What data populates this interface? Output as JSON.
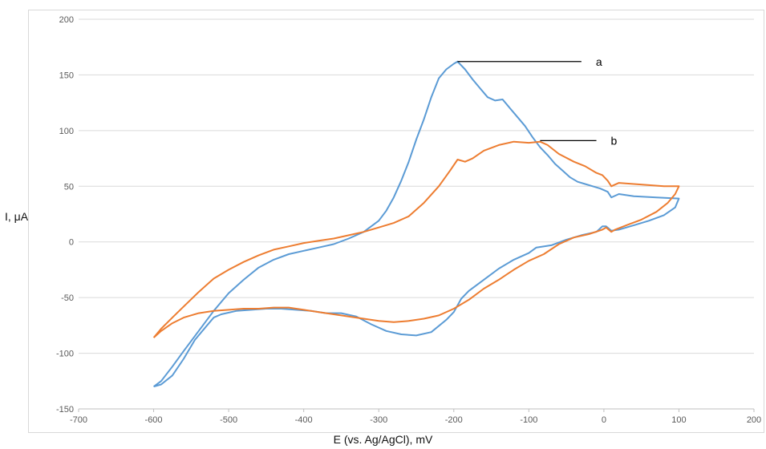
{
  "chart_data": {
    "type": "line",
    "title": "",
    "xlabel": "E (vs. Ag/AgCl), mV",
    "ylabel": "I, μA",
    "xlim": [
      -700,
      200
    ],
    "ylim": [
      -150,
      200
    ],
    "x_ticks": [
      -700,
      -600,
      -500,
      -400,
      -300,
      -200,
      -100,
      0,
      100,
      200
    ],
    "y_ticks": [
      -150,
      -100,
      -50,
      0,
      50,
      100,
      150,
      200
    ],
    "grid": "horizontal",
    "legend": "none",
    "colors": {
      "series_a": "#5b9bd5",
      "series_b": "#ed7d31",
      "gridline": "#d9d9d9",
      "annotation": "#000000"
    },
    "series": [
      {
        "color": "#5b9bd5",
        "points": [
          [
            -600,
            -130
          ],
          [
            -590,
            -125
          ],
          [
            -575,
            -112
          ],
          [
            -560,
            -98
          ],
          [
            -540,
            -80
          ],
          [
            -520,
            -62
          ],
          [
            -500,
            -46
          ],
          [
            -480,
            -34
          ],
          [
            -460,
            -23
          ],
          [
            -440,
            -16
          ],
          [
            -420,
            -11
          ],
          [
            -400,
            -8
          ],
          [
            -380,
            -5
          ],
          [
            -360,
            -2
          ],
          [
            -340,
            3
          ],
          [
            -320,
            9
          ],
          [
            -300,
            19
          ],
          [
            -290,
            28
          ],
          [
            -280,
            40
          ],
          [
            -270,
            55
          ],
          [
            -260,
            72
          ],
          [
            -250,
            92
          ],
          [
            -240,
            110
          ],
          [
            -230,
            130
          ],
          [
            -220,
            147
          ],
          [
            -210,
            155
          ],
          [
            -200,
            160
          ],
          [
            -195,
            162
          ],
          [
            -185,
            155
          ],
          [
            -175,
            146
          ],
          [
            -165,
            138
          ],
          [
            -155,
            130
          ],
          [
            -145,
            127
          ],
          [
            -135,
            128
          ],
          [
            -125,
            120
          ],
          [
            -115,
            112
          ],
          [
            -105,
            104
          ],
          [
            -95,
            94
          ],
          [
            -85,
            85
          ],
          [
            -75,
            78
          ],
          [
            -65,
            70
          ],
          [
            -55,
            64
          ],
          [
            -45,
            58
          ],
          [
            -35,
            54
          ],
          [
            -25,
            52
          ],
          [
            -15,
            50
          ],
          [
            -5,
            48
          ],
          [
            5,
            45
          ],
          [
            10,
            40
          ],
          [
            20,
            43
          ],
          [
            40,
            41
          ],
          [
            70,
            40
          ],
          [
            100,
            39
          ],
          [
            95,
            31
          ],
          [
            80,
            24
          ],
          [
            60,
            19
          ],
          [
            40,
            15
          ],
          [
            20,
            11
          ],
          [
            10,
            10
          ],
          [
            3,
            14
          ],
          [
            -2,
            14
          ],
          [
            -10,
            9
          ],
          [
            -30,
            6
          ],
          [
            -50,
            2
          ],
          [
            -70,
            -3
          ],
          [
            -90,
            -5
          ],
          [
            -100,
            -10
          ],
          [
            -120,
            -16
          ],
          [
            -140,
            -24
          ],
          [
            -160,
            -34
          ],
          [
            -180,
            -44
          ],
          [
            -190,
            -51
          ],
          [
            -200,
            -63
          ],
          [
            -210,
            -70
          ],
          [
            -230,
            -81
          ],
          [
            -250,
            -84
          ],
          [
            -270,
            -83
          ],
          [
            -290,
            -80
          ],
          [
            -310,
            -74
          ],
          [
            -330,
            -67
          ],
          [
            -350,
            -64
          ],
          [
            -370,
            -64
          ],
          [
            -390,
            -62
          ],
          [
            -410,
            -61
          ],
          [
            -430,
            -60
          ],
          [
            -450,
            -60
          ],
          [
            -470,
            -61
          ],
          [
            -490,
            -62
          ],
          [
            -510,
            -65
          ],
          [
            -520,
            -68
          ],
          [
            -530,
            -76
          ],
          [
            -545,
            -88
          ],
          [
            -560,
            -105
          ],
          [
            -575,
            -120
          ],
          [
            -590,
            -128
          ],
          [
            -600,
            -130
          ]
        ]
      },
      {
        "color": "#ed7d31",
        "points": [
          [
            -600,
            -86
          ],
          [
            -590,
            -78
          ],
          [
            -575,
            -68
          ],
          [
            -560,
            -58
          ],
          [
            -540,
            -45
          ],
          [
            -520,
            -33
          ],
          [
            -500,
            -25
          ],
          [
            -480,
            -18
          ],
          [
            -460,
            -12
          ],
          [
            -440,
            -7
          ],
          [
            -420,
            -4
          ],
          [
            -400,
            -1
          ],
          [
            -380,
            1
          ],
          [
            -360,
            3
          ],
          [
            -340,
            6
          ],
          [
            -320,
            9
          ],
          [
            -300,
            13
          ],
          [
            -280,
            17
          ],
          [
            -260,
            23
          ],
          [
            -240,
            35
          ],
          [
            -220,
            50
          ],
          [
            -205,
            64
          ],
          [
            -195,
            74
          ],
          [
            -185,
            72
          ],
          [
            -175,
            75
          ],
          [
            -160,
            82
          ],
          [
            -140,
            87
          ],
          [
            -120,
            90
          ],
          [
            -100,
            89
          ],
          [
            -85,
            90
          ],
          [
            -75,
            87
          ],
          [
            -60,
            79
          ],
          [
            -40,
            72
          ],
          [
            -25,
            68
          ],
          [
            -10,
            62
          ],
          [
            -2,
            60
          ],
          [
            5,
            55
          ],
          [
            10,
            50
          ],
          [
            20,
            53
          ],
          [
            40,
            52
          ],
          [
            60,
            51
          ],
          [
            80,
            50
          ],
          [
            100,
            50
          ],
          [
            95,
            43
          ],
          [
            85,
            35
          ],
          [
            70,
            27
          ],
          [
            50,
            20
          ],
          [
            30,
            15
          ],
          [
            15,
            11
          ],
          [
            10,
            9
          ],
          [
            3,
            13
          ],
          [
            -2,
            11
          ],
          [
            -20,
            7
          ],
          [
            -40,
            4
          ],
          [
            -60,
            -2
          ],
          [
            -80,
            -11
          ],
          [
            -100,
            -17
          ],
          [
            -120,
            -25
          ],
          [
            -140,
            -34
          ],
          [
            -160,
            -42
          ],
          [
            -180,
            -52
          ],
          [
            -200,
            -60
          ],
          [
            -220,
            -66
          ],
          [
            -240,
            -69
          ],
          [
            -260,
            -71
          ],
          [
            -280,
            -72
          ],
          [
            -300,
            -71
          ],
          [
            -320,
            -69
          ],
          [
            -340,
            -67
          ],
          [
            -360,
            -65
          ],
          [
            -380,
            -63
          ],
          [
            -400,
            -61
          ],
          [
            -420,
            -59
          ],
          [
            -440,
            -59
          ],
          [
            -460,
            -60
          ],
          [
            -480,
            -60
          ],
          [
            -500,
            -61
          ],
          [
            -520,
            -62
          ],
          [
            -540,
            -64
          ],
          [
            -560,
            -68
          ],
          [
            -575,
            -73
          ],
          [
            -590,
            -80
          ],
          [
            -600,
            -86
          ]
        ]
      }
    ],
    "annotations": [
      {
        "label": "a",
        "x_from": -195,
        "x_to": -30,
        "y": 162
      },
      {
        "label": "b",
        "x_from": -85,
        "x_to": -10,
        "y": 91
      }
    ]
  }
}
